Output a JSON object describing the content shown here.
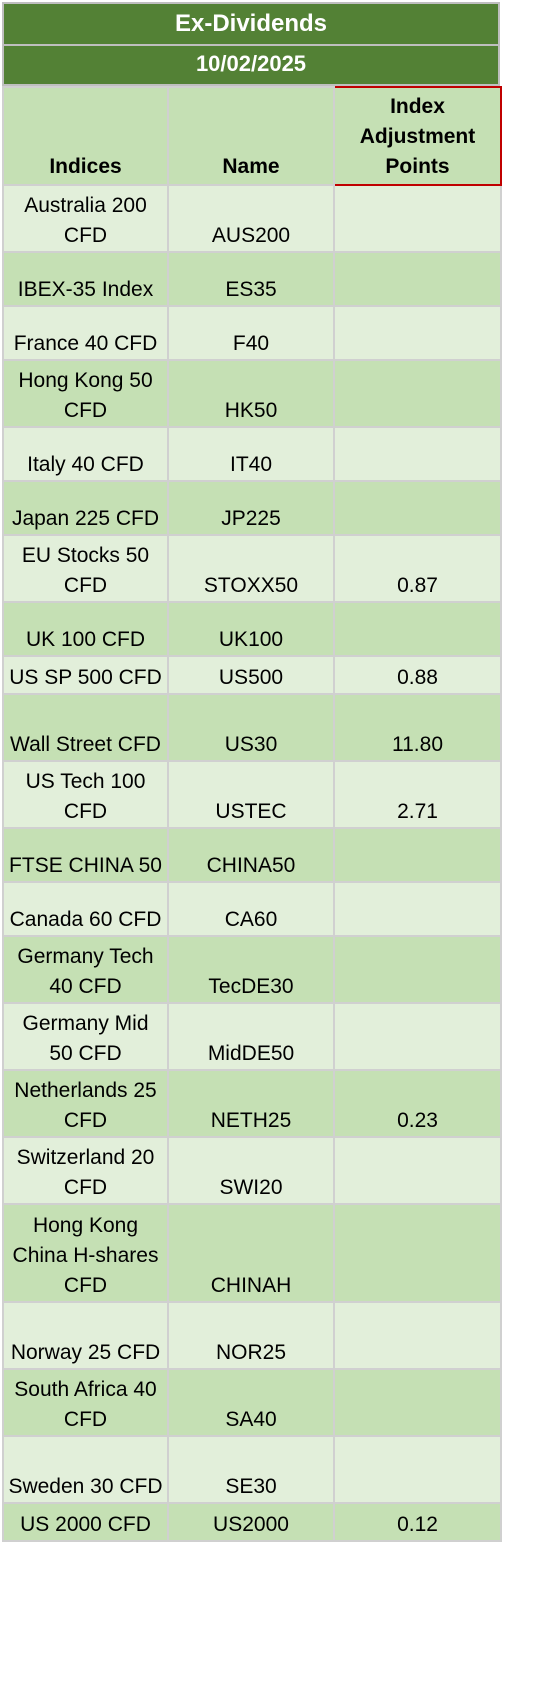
{
  "title": "Ex-Dividends",
  "date": "10/02/2025",
  "headers": {
    "indices": "Indices",
    "name": "Name",
    "adjustment": "Index Adjustment Points"
  },
  "rows": [
    {
      "index": "Australia 200 CFD",
      "name": "AUS200",
      "points": ""
    },
    {
      "index": "IBEX-35 Index",
      "name": "ES35",
      "points": ""
    },
    {
      "index": "France 40 CFD",
      "name": "F40",
      "points": ""
    },
    {
      "index": "Hong Kong 50 CFD",
      "name": "HK50",
      "points": ""
    },
    {
      "index": "Italy 40 CFD",
      "name": "IT40",
      "points": ""
    },
    {
      "index": "Japan 225 CFD",
      "name": "JP225",
      "points": ""
    },
    {
      "index": "EU Stocks 50 CFD",
      "name": "STOXX50",
      "points": "0.87"
    },
    {
      "index": "UK 100 CFD",
      "name": "UK100",
      "points": ""
    },
    {
      "index": "US SP 500 CFD",
      "name": "US500",
      "points": "0.88"
    },
    {
      "index": "Wall Street CFD",
      "name": "US30",
      "points": "11.80"
    },
    {
      "index": "US Tech 100 CFD",
      "name": "USTEC",
      "points": "2.71"
    },
    {
      "index": "FTSE CHINA 50",
      "name": "CHINA50",
      "points": ""
    },
    {
      "index": "Canada 60 CFD",
      "name": "CA60",
      "points": ""
    },
    {
      "index": "Germany Tech 40 CFD",
      "name": "TecDE30",
      "points": ""
    },
    {
      "index": "Germany Mid 50 CFD",
      "name": "MidDE50",
      "points": ""
    },
    {
      "index": "Netherlands 25 CFD",
      "name": "NETH25",
      "points": "0.23"
    },
    {
      "index": "Switzerland 20 CFD",
      "name": "SWI20",
      "points": ""
    },
    {
      "index": "Hong Kong China H-shares CFD",
      "name": "CHINAH",
      "points": ""
    },
    {
      "index": "Norway 25 CFD",
      "name": "NOR25",
      "points": ""
    },
    {
      "index": "South Africa 40 CFD",
      "name": "SA40",
      "points": ""
    },
    {
      "index": "Sweden 30 CFD",
      "name": "SE30",
      "points": ""
    },
    {
      "index": "US 2000 CFD",
      "name": "US2000",
      "points": "0.12"
    }
  ]
}
